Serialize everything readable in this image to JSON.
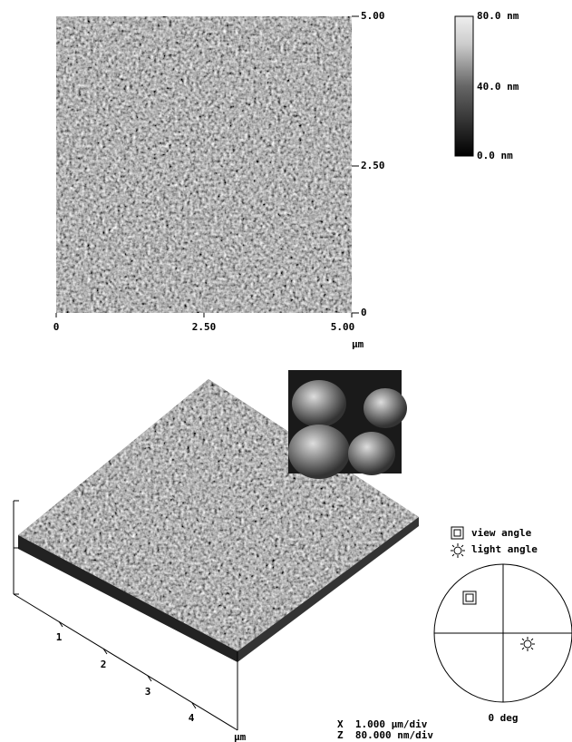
{
  "top_image": {
    "right_axis": [
      "5.00",
      "2.50",
      "0"
    ],
    "bottom_axis": [
      "0",
      "2.50",
      "5.00"
    ],
    "unit": "µm"
  },
  "color_scale": {
    "labels": [
      "80.0 nm",
      "40.0 nm",
      "0.0 nm"
    ]
  },
  "surface_3d": {
    "axis_labels": [
      "1",
      "2",
      "3",
      "4"
    ],
    "unit": "µm"
  },
  "legend": {
    "view": "view angle",
    "light": "light angle"
  },
  "angle_dial": {
    "label": "0 deg"
  },
  "scale_info": {
    "x": "X  1.000 µm/div",
    "z": "Z  80.000 nm/div"
  }
}
